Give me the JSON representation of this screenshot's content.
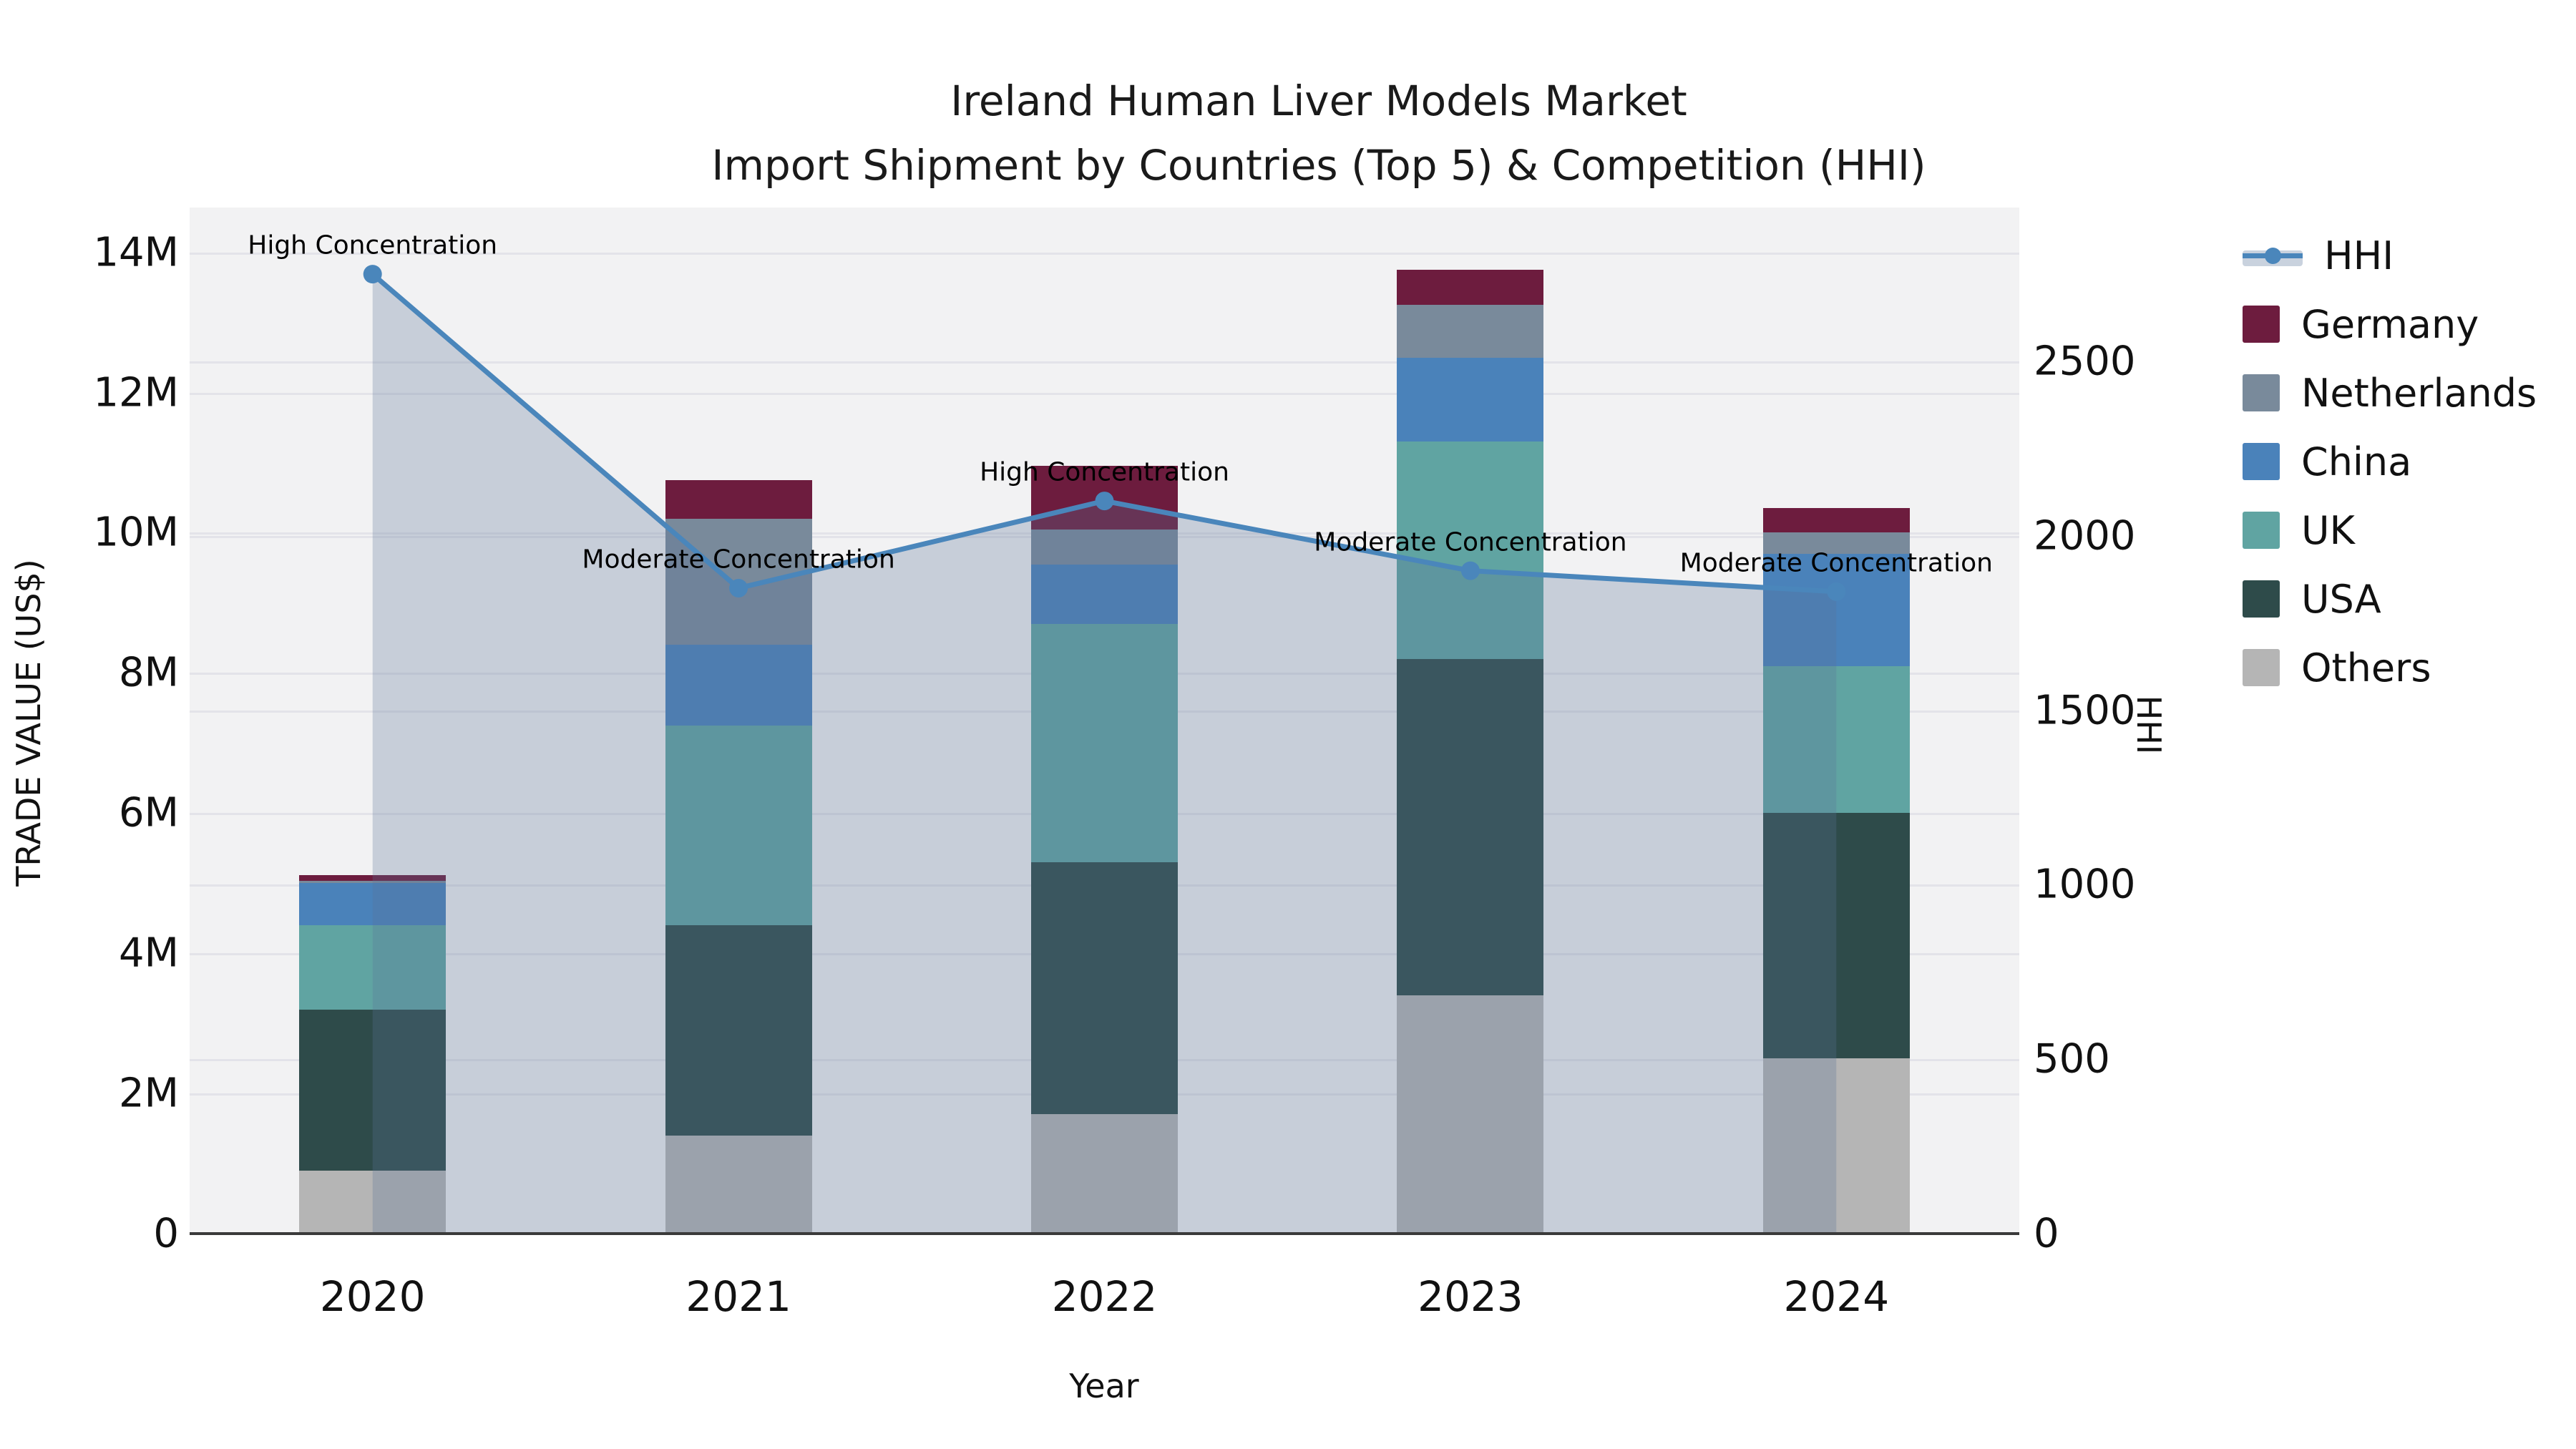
{
  "title": {
    "line1": "Ireland Human Liver Models Market",
    "line2": "Import Shipment by Countries (Top 5) & Competition (HHI)"
  },
  "axes": {
    "y_left": {
      "label": "TRADE VALUE (US$)",
      "tick_labels": [
        "0",
        "2M",
        "4M",
        "6M",
        "8M",
        "10M",
        "12M",
        "14M"
      ],
      "tick_values_m": [
        0,
        2,
        4,
        6,
        8,
        10,
        12,
        14
      ]
    },
    "y_right": {
      "label": "HHI",
      "tick_labels": [
        "0",
        "500",
        "1000",
        "1500",
        "2000",
        "2500"
      ],
      "tick_values": [
        0,
        500,
        1000,
        1500,
        2000,
        2500
      ]
    },
    "x": {
      "label": "Year"
    }
  },
  "legend": [
    {
      "label": "HHI",
      "type": "line",
      "color": "#4a86bb"
    },
    {
      "label": "Germany",
      "type": "swatch",
      "color": "#6d1c3e"
    },
    {
      "label": "Netherlands",
      "type": "swatch",
      "color": "#798a9b"
    },
    {
      "label": "China",
      "type": "swatch",
      "color": "#4a82ba"
    },
    {
      "label": "UK",
      "type": "swatch",
      "color": "#60a4a2"
    },
    {
      "label": "USA",
      "type": "swatch",
      "color": "#2e4b4a"
    },
    {
      "label": "Others",
      "type": "swatch",
      "color": "#b5b5b5"
    }
  ],
  "colors": {
    "plot_bg": "#f2f2f3",
    "grid": "#e3e3e9",
    "axis_line": "#3a3a3a",
    "hhi_line": "#4a86bb",
    "area_fill": "rgba(90,115,150,0.28)",
    "text": "#111111"
  },
  "chart_data": {
    "type": "combo: stacked-bar (left axis) + line with area (right axis)",
    "categories": [
      "2020",
      "2021",
      "2022",
      "2023",
      "2024"
    ],
    "bar_unit": "USD millions (left axis TRADE VALUE)",
    "series": [
      {
        "name": "Germany",
        "color": "#6d1c3e",
        "values_usd_m": [
          0.08,
          0.55,
          0.9,
          0.5,
          0.35
        ]
      },
      {
        "name": "Netherlands",
        "color": "#798a9b",
        "values_usd_m": [
          0.03,
          1.8,
          0.5,
          0.75,
          0.3
        ]
      },
      {
        "name": "China",
        "color": "#4a82ba",
        "values_usd_m": [
          0.6,
          1.15,
          0.85,
          1.2,
          1.6
        ]
      },
      {
        "name": "UK",
        "color": "#60a4a2",
        "values_usd_m": [
          1.2,
          2.85,
          3.4,
          3.1,
          2.1
        ]
      },
      {
        "name": "USA",
        "color": "#2e4b4a",
        "values_usd_m": [
          2.3,
          3.0,
          3.6,
          4.8,
          3.5
        ]
      },
      {
        "name": "Others",
        "color": "#b5b5b5",
        "values_usd_m": [
          0.9,
          1.4,
          1.7,
          3.4,
          2.5
        ]
      }
    ],
    "bar_totals_usd_m": [
      5.11,
      10.75,
      10.95,
      13.75,
      10.35
    ],
    "line_series": {
      "name": "HHI",
      "axis": "right",
      "color": "#4a86bb",
      "values": [
        2750,
        1850,
        2100,
        1900,
        1840
      ]
    },
    "annotations": [
      {
        "category": "2020",
        "text": "High Concentration"
      },
      {
        "category": "2021",
        "text": "Moderate Concentration"
      },
      {
        "category": "2022",
        "text": "High Concentration"
      },
      {
        "category": "2023",
        "text": "Moderate Concentration"
      },
      {
        "category": "2024",
        "text": "Moderate Concentration"
      }
    ],
    "ylim_left_m": [
      0,
      14.64
    ],
    "ylim_right": [
      0,
      2941
    ],
    "grid": true,
    "legend_position": "right"
  }
}
